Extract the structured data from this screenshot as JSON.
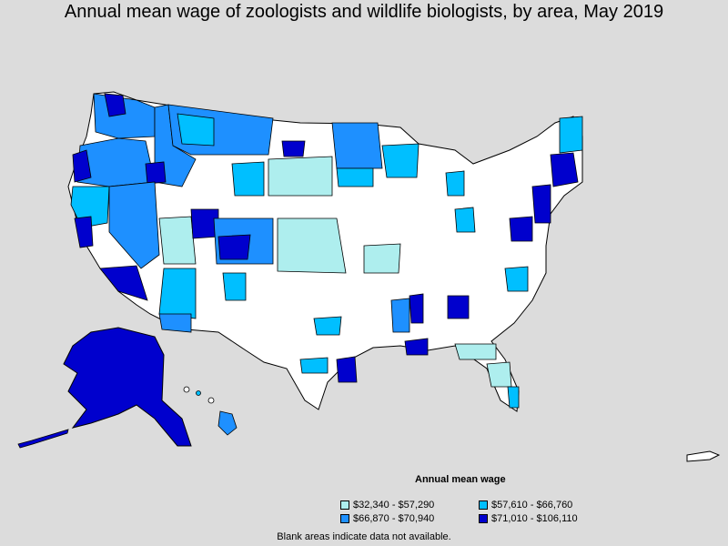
{
  "title": "Annual mean wage of zoologists and wildlife biologists, by area, May 2019",
  "legend": {
    "title": "Annual mean wage",
    "items": [
      {
        "label": "$32,340 - $57,290",
        "color": "#aeeeee"
      },
      {
        "label": "$57,610 - $66,760",
        "color": "#00bfff"
      },
      {
        "label": "$66,870 - $70,940",
        "color": "#1e90ff"
      },
      {
        "label": "$71,010 - $106,110",
        "color": "#0000cd"
      }
    ]
  },
  "note": "Blank areas indicate data not available.",
  "colors": {
    "background": "#dcdcdc",
    "no_data": "#ffffff",
    "border": "#000000"
  }
}
